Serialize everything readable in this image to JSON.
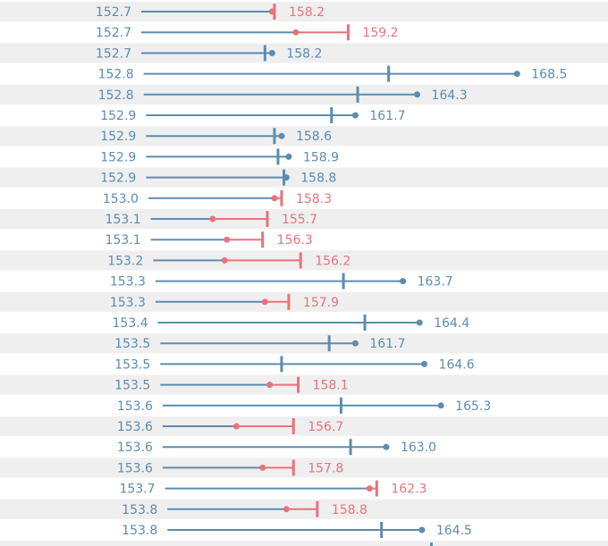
{
  "chart_data": {
    "type": "dumbbell",
    "grid": false,
    "colors": {
      "above_target": "#5b8db0",
      "below_target": "#e8737b",
      "row_band": "#efefef"
    },
    "rows": [
      {
        "start": "152.7",
        "end": "158.2",
        "target": 158.3
      },
      {
        "start": "152.7",
        "end": "159.2",
        "target": 161.4
      },
      {
        "start": "152.7",
        "end": "158.2",
        "target": 157.9
      },
      {
        "start": "152.8",
        "end": "168.5",
        "target": 163.1
      },
      {
        "start": "152.8",
        "end": "164.3",
        "target": 161.8
      },
      {
        "start": "152.9",
        "end": "161.7",
        "target": 160.7
      },
      {
        "start": "152.9",
        "end": "158.6",
        "target": 158.3
      },
      {
        "start": "152.9",
        "end": "158.9",
        "target": 158.45
      },
      {
        "start": "152.9",
        "end": "158.8",
        "target": 158.7
      },
      {
        "start": "153.0",
        "end": "158.3",
        "target": 158.6
      },
      {
        "start": "153.1",
        "end": "155.7",
        "target": 158.0
      },
      {
        "start": "153.1",
        "end": "156.3",
        "target": 157.8
      },
      {
        "start": "153.2",
        "end": "156.2",
        "target": 159.4
      },
      {
        "start": "153.3",
        "end": "163.7",
        "target": 161.2
      },
      {
        "start": "153.3",
        "end": "157.9",
        "target": 158.9
      },
      {
        "start": "153.4",
        "end": "164.4",
        "target": 162.1
      },
      {
        "start": "153.5",
        "end": "161.7",
        "target": 160.6
      },
      {
        "start": "153.5",
        "end": "164.6",
        "target": 158.6
      },
      {
        "start": "153.5",
        "end": "158.1",
        "target": 159.3
      },
      {
        "start": "153.6",
        "end": "165.3",
        "target": 161.1
      },
      {
        "start": "153.6",
        "end": "156.7",
        "target": 159.1
      },
      {
        "start": "153.6",
        "end": "163.0",
        "target": 161.5
      },
      {
        "start": "153.6",
        "end": "157.8",
        "target": 159.1
      },
      {
        "start": "153.7",
        "end": "162.3",
        "target": 162.6
      },
      {
        "start": "153.8",
        "end": "158.8",
        "target": 160.1
      },
      {
        "start": "153.8",
        "end": "164.5",
        "target": 162.8
      }
    ]
  }
}
